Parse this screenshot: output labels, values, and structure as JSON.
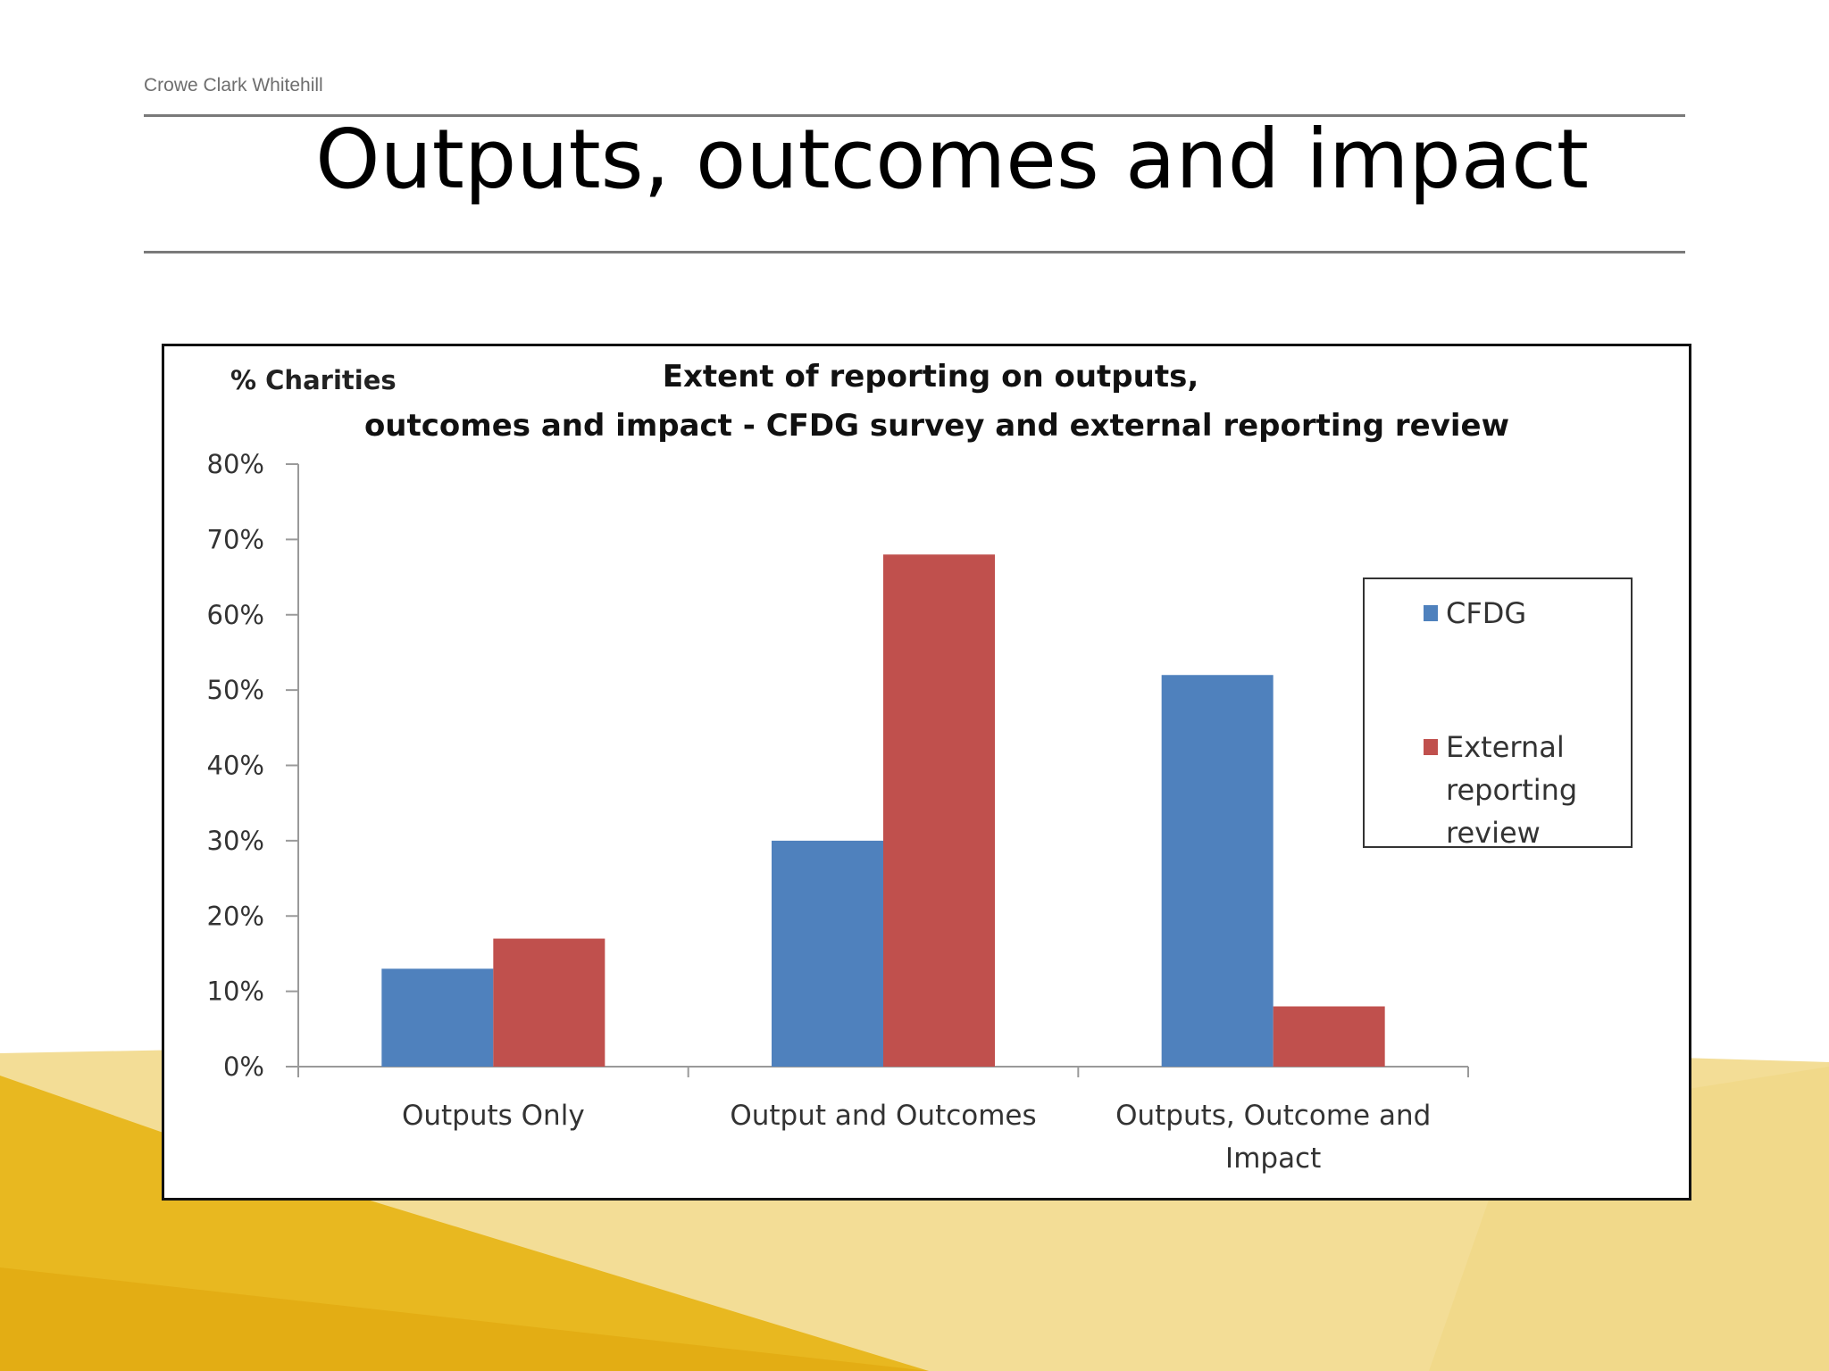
{
  "header": {
    "company": "Crowe Clark Whitehill",
    "slide_title": "Outputs, outcomes and impact"
  },
  "colors": {
    "series_1": "#4f81bd",
    "series_2": "#c0504d",
    "accent_yellow": "#e8b820",
    "accent_pale": "#f3dd96"
  },
  "chart_data": {
    "type": "bar",
    "title_line1": "Extent of reporting on outputs,",
    "title_line2": "outcomes and impact - CFDG survey and external reporting review",
    "ylabel": "% Charities",
    "ylim": [
      0,
      80
    ],
    "yticks": [
      "0%",
      "10%",
      "20%",
      "30%",
      "40%",
      "50%",
      "60%",
      "70%",
      "80%"
    ],
    "categories": [
      [
        "Outputs Only"
      ],
      [
        "Output and Outcomes"
      ],
      [
        "Outputs, Outcome and",
        "Impact"
      ]
    ],
    "series": [
      {
        "name": "CFDG",
        "legend_lines": [
          "CFDG"
        ],
        "values": [
          13,
          30,
          52
        ]
      },
      {
        "name": "External reporting review",
        "legend_lines": [
          "External",
          "reporting",
          "review"
        ],
        "values": [
          17,
          68,
          8
        ]
      }
    ],
    "legend_position": "right"
  }
}
